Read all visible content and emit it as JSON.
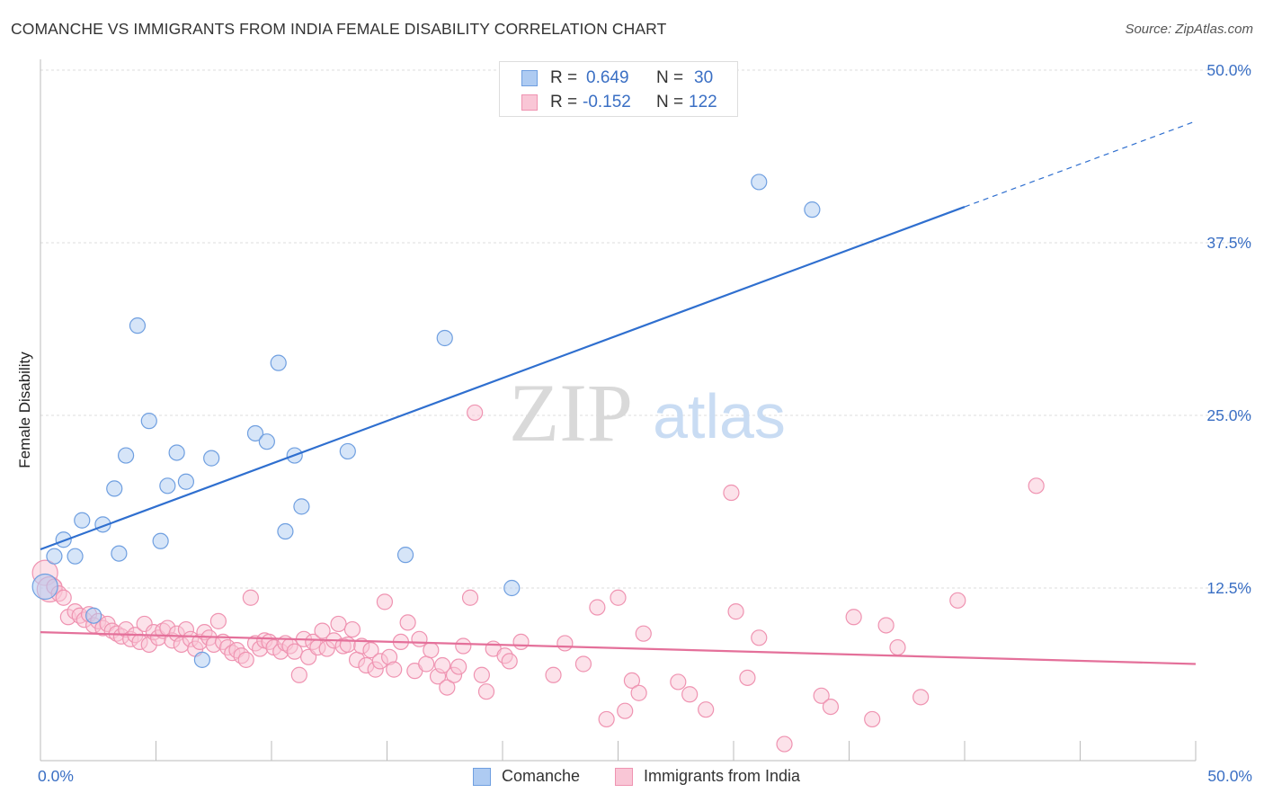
{
  "title": "COMANCHE VS IMMIGRANTS FROM INDIA FEMALE DISABILITY CORRELATION CHART",
  "source": "Source: ZipAtlas.com",
  "watermark": {
    "zip": "ZIP",
    "atlas": "atlas"
  },
  "stats": [
    {
      "r_label": "R =",
      "r_value": "0.649",
      "n_label": "N =",
      "n_value": "30",
      "color": "#aecbf2",
      "border": "#6f9fe0"
    },
    {
      "r_label": "R =",
      "r_value": "-0.152",
      "n_label": "N =",
      "n_value": "122",
      "color": "#f9c6d6",
      "border": "#ef93b1"
    }
  ],
  "legend": [
    {
      "name": "Comanche",
      "color": "#aecbf2",
      "border": "#6f9fe0"
    },
    {
      "name": "Immigrants from India",
      "color": "#f9c6d6",
      "border": "#ef93b1"
    }
  ],
  "chart_data": {
    "type": "scatter",
    "title": "COMANCHE VS IMMIGRANTS FROM INDIA FEMALE DISABILITY CORRELATION CHART",
    "ylabel": "Female Disability",
    "xlim": [
      0,
      50
    ],
    "ylim": [
      0,
      50
    ],
    "x_tick_labels": [
      {
        "value": 0,
        "label": "0.0%"
      },
      {
        "value": 50,
        "label": "50.0%"
      }
    ],
    "y_tick_labels": [
      {
        "value": 12.5,
        "label": "12.5%"
      },
      {
        "value": 25,
        "label": "25.0%"
      },
      {
        "value": 37.5,
        "label": "37.5%"
      },
      {
        "value": 50,
        "label": "50.0%"
      }
    ],
    "grid": true,
    "legend_position": "bottom",
    "series": [
      {
        "name": "Comanche",
        "color": "#6f9fe0",
        "fill": "#aecbf2",
        "trend": {
          "x": [
            0,
            40
          ],
          "y": [
            15.3,
            40.1
          ],
          "extend_to_x": 50,
          "extend_y": 46.3,
          "color": "#2f6fcf"
        },
        "points": [
          [
            0.2,
            12.6
          ],
          [
            0.6,
            14.8
          ],
          [
            1.0,
            16.0
          ],
          [
            1.5,
            14.8
          ],
          [
            1.8,
            17.4
          ],
          [
            2.3,
            10.5
          ],
          [
            2.7,
            17.1
          ],
          [
            3.2,
            19.7
          ],
          [
            3.4,
            15.0
          ],
          [
            3.7,
            22.1
          ],
          [
            4.2,
            31.5
          ],
          [
            4.7,
            24.6
          ],
          [
            5.2,
            15.9
          ],
          [
            5.5,
            19.9
          ],
          [
            5.9,
            22.3
          ],
          [
            6.3,
            20.2
          ],
          [
            7.0,
            7.3
          ],
          [
            7.4,
            21.9
          ],
          [
            9.3,
            23.7
          ],
          [
            9.8,
            23.1
          ],
          [
            10.3,
            28.8
          ],
          [
            10.6,
            16.6
          ],
          [
            11.0,
            22.1
          ],
          [
            11.3,
            18.4
          ],
          [
            13.3,
            22.4
          ],
          [
            15.8,
            14.9
          ],
          [
            17.5,
            30.6
          ],
          [
            20.4,
            12.5
          ],
          [
            31.1,
            41.9
          ],
          [
            33.4,
            39.9
          ]
        ]
      },
      {
        "name": "Immigrants from India",
        "color": "#ef93b1",
        "fill": "#f9c6d6",
        "trend": {
          "x": [
            0,
            50
          ],
          "y": [
            9.3,
            7.0
          ],
          "color": "#e4709a"
        },
        "points": [
          [
            0.2,
            13.6
          ],
          [
            0.4,
            12.4
          ],
          [
            0.6,
            12.6
          ],
          [
            0.8,
            12.1
          ],
          [
            1.0,
            11.8
          ],
          [
            1.2,
            10.4
          ],
          [
            1.5,
            10.8
          ],
          [
            1.7,
            10.5
          ],
          [
            1.9,
            10.2
          ],
          [
            2.1,
            10.6
          ],
          [
            2.3,
            9.8
          ],
          [
            2.5,
            10.1
          ],
          [
            2.7,
            9.6
          ],
          [
            2.9,
            9.9
          ],
          [
            3.1,
            9.4
          ],
          [
            3.3,
            9.2
          ],
          [
            3.5,
            9.0
          ],
          [
            3.7,
            9.5
          ],
          [
            3.9,
            8.8
          ],
          [
            4.1,
            9.1
          ],
          [
            4.3,
            8.6
          ],
          [
            4.5,
            9.9
          ],
          [
            4.7,
            8.4
          ],
          [
            4.9,
            9.3
          ],
          [
            5.1,
            8.9
          ],
          [
            5.3,
            9.4
          ],
          [
            5.5,
            9.6
          ],
          [
            5.7,
            8.7
          ],
          [
            5.9,
            9.2
          ],
          [
            6.1,
            8.4
          ],
          [
            6.3,
            9.5
          ],
          [
            6.5,
            8.8
          ],
          [
            6.7,
            8.1
          ],
          [
            6.9,
            8.6
          ],
          [
            7.1,
            9.3
          ],
          [
            7.3,
            8.9
          ],
          [
            7.5,
            8.4
          ],
          [
            7.7,
            10.1
          ],
          [
            7.9,
            8.6
          ],
          [
            8.1,
            8.2
          ],
          [
            8.3,
            7.8
          ],
          [
            8.5,
            8.0
          ],
          [
            8.7,
            7.6
          ],
          [
            8.9,
            7.3
          ],
          [
            9.1,
            11.8
          ],
          [
            9.3,
            8.5
          ],
          [
            9.5,
            8.1
          ],
          [
            9.7,
            8.7
          ],
          [
            9.9,
            8.6
          ],
          [
            10.1,
            8.2
          ],
          [
            10.4,
            7.9
          ],
          [
            10.6,
            8.5
          ],
          [
            10.8,
            8.3
          ],
          [
            11.0,
            7.9
          ],
          [
            11.2,
            6.2
          ],
          [
            11.4,
            8.8
          ],
          [
            11.6,
            7.5
          ],
          [
            11.8,
            8.6
          ],
          [
            12.0,
            8.2
          ],
          [
            12.2,
            9.4
          ],
          [
            12.4,
            8.1
          ],
          [
            12.7,
            8.7
          ],
          [
            12.9,
            9.9
          ],
          [
            13.1,
            8.3
          ],
          [
            13.3,
            8.4
          ],
          [
            13.5,
            9.5
          ],
          [
            13.7,
            7.3
          ],
          [
            13.9,
            8.3
          ],
          [
            14.1,
            6.9
          ],
          [
            14.3,
            8.0
          ],
          [
            14.5,
            6.6
          ],
          [
            14.7,
            7.2
          ],
          [
            14.9,
            11.5
          ],
          [
            15.1,
            7.5
          ],
          [
            15.3,
            6.6
          ],
          [
            15.6,
            8.6
          ],
          [
            15.9,
            10.0
          ],
          [
            16.2,
            6.5
          ],
          [
            16.4,
            8.8
          ],
          [
            16.7,
            7.0
          ],
          [
            16.9,
            8.0
          ],
          [
            17.2,
            6.1
          ],
          [
            17.4,
            6.9
          ],
          [
            17.6,
            5.3
          ],
          [
            17.9,
            6.2
          ],
          [
            18.1,
            6.8
          ],
          [
            18.3,
            8.3
          ],
          [
            18.6,
            11.8
          ],
          [
            18.8,
            25.2
          ],
          [
            19.1,
            6.2
          ],
          [
            19.3,
            5.0
          ],
          [
            19.6,
            8.1
          ],
          [
            20.1,
            7.6
          ],
          [
            20.3,
            7.2
          ],
          [
            20.8,
            8.6
          ],
          [
            22.2,
            6.2
          ],
          [
            22.7,
            8.5
          ],
          [
            23.5,
            7.0
          ],
          [
            24.1,
            11.1
          ],
          [
            24.5,
            3.0
          ],
          [
            25.0,
            11.8
          ],
          [
            25.3,
            3.6
          ],
          [
            25.6,
            5.8
          ],
          [
            25.9,
            4.9
          ],
          [
            26.1,
            9.2
          ],
          [
            27.6,
            5.7
          ],
          [
            28.1,
            4.8
          ],
          [
            28.8,
            3.7
          ],
          [
            29.9,
            19.4
          ],
          [
            30.1,
            10.8
          ],
          [
            30.6,
            6.0
          ],
          [
            31.1,
            8.9
          ],
          [
            32.2,
            1.2
          ],
          [
            33.8,
            4.7
          ],
          [
            34.2,
            3.9
          ],
          [
            35.2,
            10.4
          ],
          [
            36.0,
            3.0
          ],
          [
            36.6,
            9.8
          ],
          [
            37.1,
            8.2
          ],
          [
            38.1,
            4.6
          ],
          [
            39.7,
            11.6
          ],
          [
            43.1,
            19.9
          ]
        ]
      }
    ]
  }
}
